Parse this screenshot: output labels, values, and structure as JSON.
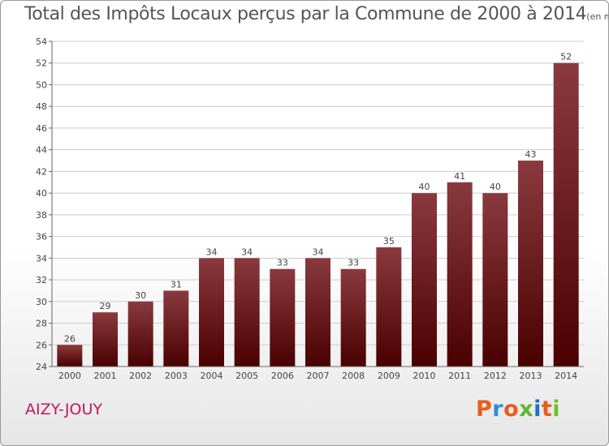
{
  "header": {
    "title": "Total des Impôts Locaux perçus par la Commune de 2000 à 2014",
    "unit": "(en milliers d'€)"
  },
  "commune": "AIZY-JOUY",
  "logo": {
    "text": "Proxiti",
    "colors": [
      "#e85c1e",
      "#2a8fd6",
      "#e85c1e",
      "#5fb82e",
      "#1f6fc2",
      "#e85c1e",
      "#6fbf2a"
    ]
  },
  "colors": {
    "bar_top": "#8a3a3f",
    "bar_bottom": "#4a0000",
    "grid": "#cccccc",
    "title": "#555555",
    "commune": "#c2185b"
  },
  "chart_data": {
    "type": "bar",
    "categories": [
      "2000",
      "2001",
      "2002",
      "2003",
      "2004",
      "2005",
      "2006",
      "2007",
      "2008",
      "2009",
      "2010",
      "2011",
      "2012",
      "2013",
      "2014"
    ],
    "values": [
      26,
      29,
      30,
      31,
      34,
      34,
      33,
      34,
      33,
      35,
      40,
      41,
      40,
      43,
      52
    ],
    "title": "Total des Impôts Locaux perçus par la Commune de 2000 à 2014",
    "xlabel": "",
    "ylabel": "",
    "ylim": [
      24,
      54
    ],
    "yticks": [
      24,
      26,
      28,
      30,
      32,
      34,
      36,
      38,
      40,
      42,
      44,
      46,
      48,
      50,
      52,
      54
    ],
    "grid": true
  }
}
